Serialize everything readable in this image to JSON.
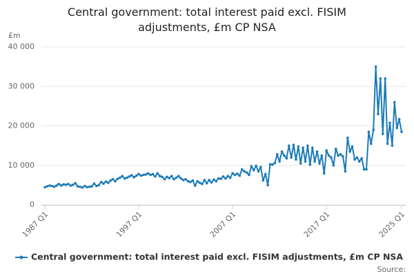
{
  "chart_data": {
    "type": "line",
    "title": "Central government: total interest paid excl. FISIM adjustments, £m CP NSA",
    "y_unit": "£m",
    "source": "Source:",
    "categories": [
      "1987 Q1",
      null,
      null,
      null,
      null,
      null,
      null,
      null,
      null,
      null,
      null,
      null,
      null,
      null,
      null,
      null,
      null,
      null,
      null,
      null,
      null,
      null,
      null,
      null,
      null,
      null,
      null,
      null,
      null,
      null,
      null,
      null,
      null,
      null,
      null,
      null,
      null,
      null,
      null,
      null,
      "1997 Q1",
      null,
      null,
      null,
      null,
      null,
      null,
      null,
      null,
      null,
      null,
      null,
      null,
      null,
      null,
      null,
      null,
      null,
      null,
      null,
      null,
      null,
      null,
      null,
      null,
      null,
      null,
      null,
      null,
      null,
      null,
      null,
      null,
      null,
      null,
      null,
      null,
      null,
      null,
      null,
      "2007 Q1",
      null,
      null,
      null,
      null,
      null,
      null,
      null,
      null,
      null,
      null,
      null,
      null,
      null,
      null,
      null,
      null,
      null,
      null,
      null,
      null,
      null,
      null,
      null,
      null,
      null,
      null,
      null,
      null,
      null,
      null,
      null,
      null,
      null,
      null,
      null,
      null,
      null,
      null,
      null,
      "2017 Q1",
      null,
      null,
      null,
      null,
      null,
      null,
      null,
      null,
      null,
      null,
      null,
      null,
      null,
      null,
      null,
      null,
      null,
      null,
      null,
      null,
      null,
      null,
      null,
      null,
      null,
      null,
      null,
      null,
      null,
      null,
      null,
      "2025 Q1"
    ],
    "series": [
      {
        "name": "Central government: total interest paid excl. FISIM adjustments, £m CP NSA",
        "color": "#1a7ab8",
        "values": [
          4500,
          4700,
          4900,
          4800,
          4600,
          4900,
          5300,
          4900,
          5200,
          5100,
          5300,
          4900,
          5100,
          5500,
          4700,
          4600,
          4400,
          4800,
          4500,
          4600,
          4700,
          5400,
          4800,
          5000,
          5800,
          5400,
          5900,
          5600,
          6200,
          6500,
          6000,
          6600,
          6900,
          7300,
          6700,
          6900,
          7200,
          7500,
          7000,
          7400,
          7800,
          7400,
          7600,
          7700,
          8000,
          7600,
          7800,
          7200,
          8000,
          7300,
          7100,
          6500,
          7100,
          6800,
          7300,
          6500,
          6900,
          7300,
          6700,
          6300,
          6500,
          6000,
          5800,
          6200,
          4900,
          6000,
          5600,
          5300,
          6300,
          5500,
          6300,
          5700,
          6400,
          6000,
          6700,
          6600,
          7200,
          6700,
          7300,
          6900,
          8000,
          7600,
          7900,
          7400,
          9000,
          8500,
          8200,
          7600,
          9800,
          8800,
          9900,
          8500,
          9600,
          6200,
          7800,
          5000,
          10300,
          10200,
          10600,
          12800,
          11000,
          13500,
          12500,
          11800,
          15000,
          12000,
          15200,
          11500,
          14800,
          10500,
          14500,
          11000,
          15000,
          10200,
          14500,
          11000,
          13500,
          10500,
          12500,
          8000,
          13800,
          12500,
          12000,
          10000,
          14200,
          12500,
          12800,
          12300,
          8500,
          17000,
          13500,
          14800,
          11500,
          12000,
          11000,
          11800,
          9000,
          9000,
          18500,
          15500,
          19000,
          35000,
          23000,
          32000,
          18000,
          32000,
          15500,
          20800,
          15000,
          26000,
          19500,
          21700,
          18500
        ]
      }
    ],
    "ylim": [
      0,
      40000
    ],
    "yticks": [
      0,
      {
        "value": 10000,
        "label": "10 000"
      },
      {
        "value": 20000,
        "label": "20 000"
      },
      {
        "value": 30000,
        "label": "30 000"
      },
      {
        "value": 40000,
        "label": "40 000"
      }
    ],
    "grid": true
  }
}
